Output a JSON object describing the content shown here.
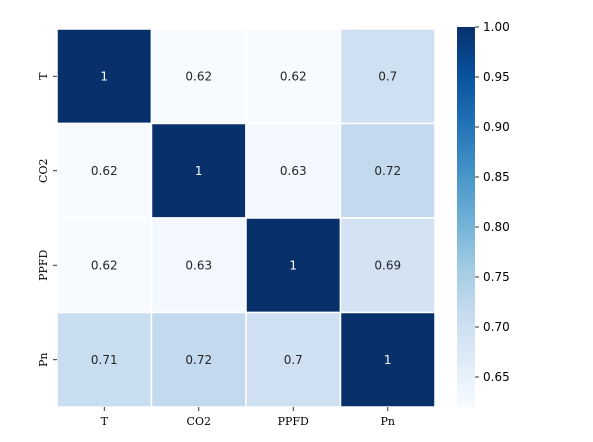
{
  "chart_data": {
    "type": "heatmap",
    "title": "",
    "xlabel": "",
    "ylabel": "",
    "rows": [
      "T",
      "CO2",
      "PPFD",
      "Pn"
    ],
    "columns": [
      "T",
      "CO2",
      "PPFD",
      "Pn"
    ],
    "values": [
      [
        1,
        0.62,
        0.62,
        0.7
      ],
      [
        0.62,
        1,
        0.63,
        0.72
      ],
      [
        0.62,
        0.63,
        1,
        0.69
      ],
      [
        0.71,
        0.72,
        0.7,
        1
      ]
    ],
    "cell_labels": [
      [
        "1",
        "0.62",
        "0.62",
        "0.7"
      ],
      [
        "0.62",
        "1",
        "0.63",
        "0.72"
      ],
      [
        "0.62",
        "0.63",
        "1",
        "0.69"
      ],
      [
        "0.71",
        "0.72",
        "0.7",
        "1"
      ]
    ],
    "colormap": "Blues",
    "color_range": [
      0.62,
      1.0
    ],
    "colorbar_ticks": [
      "0.65",
      "0.70",
      "0.75",
      "0.80",
      "0.85",
      "0.90",
      "0.95",
      "1.00"
    ],
    "colorbar_tick_values": [
      0.65,
      0.7,
      0.75,
      0.8,
      0.85,
      0.9,
      0.95,
      1.0
    ],
    "grid": true,
    "legend": "colorbar-right"
  }
}
